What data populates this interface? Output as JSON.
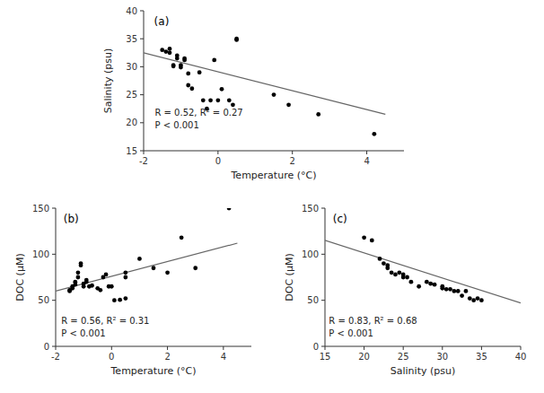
{
  "chart_data": [
    {
      "type": "scatter",
      "title": "(a)",
      "x_label": "Temperature (°C)",
      "y_label": "Salinity (psu)",
      "xlim": [
        -2,
        5
      ],
      "ylim": [
        15,
        40
      ],
      "xticks": [
        -2,
        0,
        2,
        4
      ],
      "yticks": [
        15,
        20,
        25,
        30,
        35,
        40
      ],
      "series": [
        {
          "type": "scatter",
          "color": "#000000",
          "x": [
            -1.5,
            -1.4,
            -1.3,
            -1.3,
            -1.2,
            -1.2,
            -1.1,
            -1.1,
            -1.0,
            -1.0,
            -0.9,
            -0.9,
            -0.8,
            -0.8,
            -0.7,
            -0.5,
            -0.4,
            -0.3,
            -0.2,
            -0.1,
            0.0,
            0.1,
            0.3,
            0.4,
            0.5,
            0.5,
            1.5,
            1.9,
            2.7,
            4.2
          ],
          "values": [
            33.0,
            32.7,
            32.5,
            33.2,
            30.3,
            30.1,
            32.0,
            31.5,
            29.9,
            30.3,
            31.5,
            31.2,
            28.8,
            26.7,
            26.1,
            29.0,
            24.0,
            22.5,
            24.0,
            31.2,
            24.0,
            26.0,
            24.0,
            23.2,
            35.0,
            34.8,
            25.0,
            23.2,
            21.5,
            18.0
          ]
        },
        {
          "type": "line",
          "color": "#666666",
          "x": [
            -2,
            4.5
          ],
          "values": [
            32.5,
            21.5
          ]
        }
      ],
      "annotations": [
        {
          "text": "R = 0.52, R² = 0.27\nP < 0.001",
          "x": -1.7,
          "y": 18.5
        }
      ]
    },
    {
      "type": "scatter",
      "title": "(b)",
      "x_label": "Temperature (°C)",
      "y_label": "DOC (μM)",
      "xlim": [
        -2,
        5
      ],
      "ylim": [
        0,
        150
      ],
      "xticks": [
        -2,
        0,
        2,
        4
      ],
      "yticks": [
        0,
        50,
        100,
        150
      ],
      "series": [
        {
          "type": "scatter",
          "color": "#000000",
          "x": [
            -1.5,
            -1.5,
            -1.4,
            -1.4,
            -1.3,
            -1.3,
            -1.2,
            -1.2,
            -1.1,
            -1.1,
            -1.0,
            -1.0,
            -0.9,
            -0.9,
            -0.8,
            -0.7,
            -0.5,
            -0.4,
            -0.3,
            -0.2,
            -0.1,
            0.0,
            0.1,
            0.3,
            0.5,
            0.5,
            0.5,
            1.0,
            1.5,
            2.0,
            2.5,
            3.0,
            4.2
          ],
          "values": [
            60.0,
            61.0,
            63.0,
            65.0,
            67.0,
            70.0,
            75.0,
            80.0,
            90.0,
            88.0,
            65.0,
            68.0,
            70.0,
            72.0,
            65.0,
            66.0,
            63.0,
            61.0,
            75.0,
            78.0,
            65.0,
            65.0,
            50.0,
            50.5,
            80.0,
            75.0,
            52.0,
            95.0,
            85.0,
            80.0,
            118.0,
            85.0,
            150.0
          ]
        },
        {
          "type": "line",
          "color": "#666666",
          "x": [
            -2,
            4.5
          ],
          "values": [
            60.0,
            112.0
          ]
        }
      ],
      "annotations": [
        {
          "text": "R = 0.56, R² = 0.31\nP < 0.001",
          "x": -1.8,
          "y": 8.0
        }
      ]
    },
    {
      "type": "scatter",
      "title": "(c)",
      "x_label": "Salinity (psu)",
      "y_label": "DOC (μM)",
      "xlim": [
        15,
        40
      ],
      "ylim": [
        0,
        150
      ],
      "xticks": [
        15,
        20,
        25,
        30,
        35,
        40
      ],
      "yticks": [
        0,
        50,
        100,
        150
      ],
      "series": [
        {
          "type": "scatter",
          "color": "#000000",
          "x": [
            20.0,
            21.0,
            22.0,
            22.5,
            23.0,
            23.0,
            23.5,
            24.0,
            24.5,
            25.0,
            25.0,
            25.5,
            26.0,
            27.0,
            28.0,
            28.5,
            29.0,
            30.0,
            30.0,
            30.5,
            31.0,
            31.5,
            32.0,
            32.5,
            33.0,
            33.5,
            34.0,
            34.5,
            35.0
          ],
          "values": [
            118.0,
            115.0,
            95.0,
            90.0,
            88.0,
            85.0,
            80.0,
            78.0,
            80.0,
            78.0,
            75.0,
            75.0,
            70.0,
            65.0,
            70.0,
            68.0,
            67.0,
            63.0,
            65.0,
            62.0,
            62.0,
            60.0,
            60.0,
            55.0,
            60.0,
            52.0,
            50.0,
            52.0,
            50.0
          ]
        },
        {
          "type": "line",
          "color": "#666666",
          "x": [
            15,
            40
          ],
          "values": [
            115.0,
            47.0
          ]
        }
      ],
      "annotations": [
        {
          "text": "R = 0.83, R² = 0.68\nP < 0.001",
          "x": 15.5,
          "y": 8.0
        }
      ]
    }
  ]
}
